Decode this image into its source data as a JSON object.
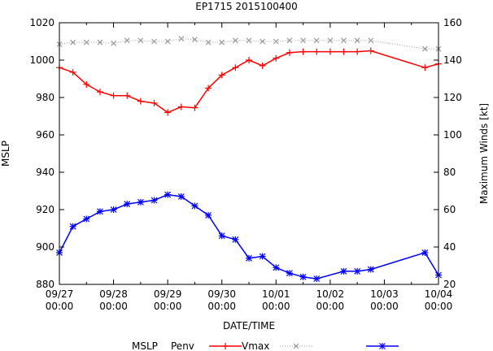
{
  "chart_data": {
    "type": "line",
    "title": "EP1715 2015100400",
    "xlabel": "DATE/TIME",
    "ylabel": "MSLP",
    "y2label": "Maximum Winds [kt]",
    "x_ticks": [
      {
        "t": 0,
        "l1": "09/27",
        "l2": "00:00"
      },
      {
        "t": 24,
        "l1": "09/28",
        "l2": "00:00"
      },
      {
        "t": 48,
        "l1": "09/29",
        "l2": "00:00"
      },
      {
        "t": 72,
        "l1": "09/30",
        "l2": "00:00"
      },
      {
        "t": 96,
        "l1": "10/01",
        "l2": "00:00"
      },
      {
        "t": 120,
        "l1": "10/02",
        "l2": "00:00"
      },
      {
        "t": 144,
        "l1": "10/03",
        "l2": "00:00"
      },
      {
        "t": 168,
        "l1": "10/04",
        "l2": "00:00"
      }
    ],
    "xlim": [
      0,
      168
    ],
    "ylim": [
      880,
      1020
    ],
    "y_ticks": [
      880,
      900,
      920,
      940,
      960,
      980,
      1000,
      1020
    ],
    "y2lim": [
      20,
      160
    ],
    "y2_ticks": [
      20,
      40,
      60,
      80,
      100,
      120,
      140,
      160
    ],
    "legend_title": "MSLP",
    "series": [
      {
        "name": "Penv",
        "axis": "left",
        "color": "#ff0000",
        "marker": "plus",
        "points": [
          [
            0,
            996
          ],
          [
            6,
            993.5
          ],
          [
            12,
            987
          ],
          [
            18,
            983
          ],
          [
            24,
            981
          ],
          [
            30,
            981
          ],
          [
            36,
            978
          ],
          [
            42,
            977
          ],
          [
            48,
            972
          ],
          [
            54,
            975
          ],
          [
            60,
            974.5
          ],
          [
            66,
            985
          ],
          [
            72,
            992
          ],
          [
            78,
            996
          ],
          [
            84,
            1000
          ],
          [
            90,
            997
          ],
          [
            96,
            1001
          ],
          [
            102,
            1004
          ],
          [
            108,
            1004.5
          ],
          [
            114,
            1004.5
          ],
          [
            120,
            1004.5
          ],
          [
            126,
            1004.5
          ],
          [
            132,
            1004.5
          ],
          [
            138,
            1005
          ],
          [
            162,
            996
          ],
          [
            168,
            998
          ]
        ]
      },
      {
        "name": "Vmax",
        "axis": "left",
        "color": "#999999",
        "marker": "x",
        "dotted": true,
        "points": [
          [
            0,
            1008.5
          ],
          [
            6,
            1009.5
          ],
          [
            12,
            1009.5
          ],
          [
            18,
            1009.5
          ],
          [
            24,
            1009
          ],
          [
            30,
            1010.5
          ],
          [
            36,
            1010.5
          ],
          [
            42,
            1010
          ],
          [
            48,
            1010
          ],
          [
            54,
            1011.5
          ],
          [
            60,
            1011
          ],
          [
            66,
            1009.5
          ],
          [
            72,
            1009.5
          ],
          [
            78,
            1010.5
          ],
          [
            84,
            1010.5
          ],
          [
            90,
            1010
          ],
          [
            96,
            1010
          ],
          [
            102,
            1010.5
          ],
          [
            108,
            1010.5
          ],
          [
            114,
            1010.5
          ],
          [
            120,
            1010.5
          ],
          [
            126,
            1010.5
          ],
          [
            132,
            1010.5
          ],
          [
            138,
            1010.5
          ],
          [
            162,
            1006
          ],
          [
            168,
            1006
          ]
        ]
      },
      {
        "name": "",
        "axis": "right",
        "color": "#0000ff",
        "marker": "star",
        "points": [
          [
            0,
            37
          ],
          [
            6,
            51
          ],
          [
            12,
            55
          ],
          [
            18,
            59
          ],
          [
            24,
            60
          ],
          [
            30,
            63
          ],
          [
            36,
            64
          ],
          [
            42,
            65
          ],
          [
            48,
            68
          ],
          [
            54,
            67
          ],
          [
            60,
            62
          ],
          [
            66,
            57
          ],
          [
            72,
            46
          ],
          [
            78,
            44
          ],
          [
            84,
            34
          ],
          [
            90,
            35
          ],
          [
            96,
            29
          ],
          [
            102,
            26
          ],
          [
            108,
            24
          ],
          [
            114,
            23
          ],
          [
            126,
            27
          ],
          [
            132,
            27
          ],
          [
            138,
            28
          ],
          [
            162,
            37
          ],
          [
            168,
            25
          ]
        ]
      }
    ]
  }
}
